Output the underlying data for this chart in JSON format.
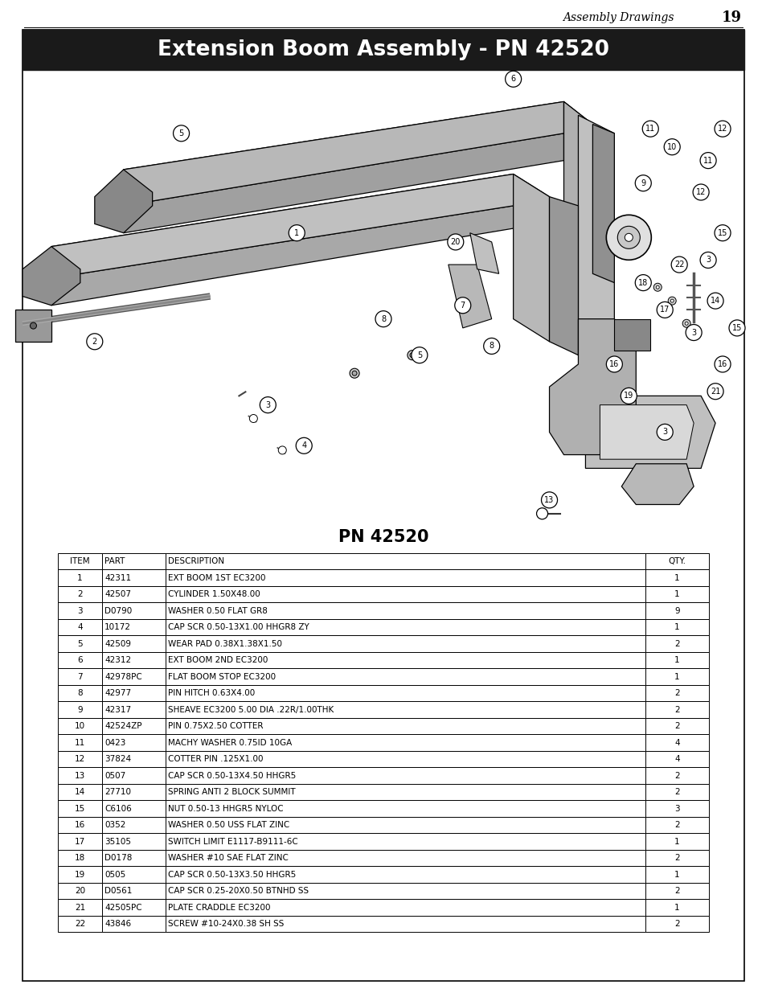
{
  "page_title": "Assembly Drawings",
  "page_number": "19",
  "header_title": "Extension Boom Assembly - PN 42520",
  "pn_label": "PN 42520",
  "table_headers": [
    "ITEM",
    "PART",
    "DESCRIPTION",
    "QTY."
  ],
  "table_data": [
    [
      "1",
      "42311",
      "EXT BOOM 1ST EC3200",
      "1"
    ],
    [
      "2",
      "42507",
      "CYLINDER 1.50X48.00",
      "1"
    ],
    [
      "3",
      "D0790",
      "WASHER 0.50 FLAT GR8",
      "9"
    ],
    [
      "4",
      "10172",
      "CAP SCR 0.50-13X1.00 HHGR8 ZY",
      "1"
    ],
    [
      "5",
      "42509",
      "WEAR PAD 0.38X1.38X1.50",
      "2"
    ],
    [
      "6",
      "42312",
      "EXT BOOM 2ND EC3200",
      "1"
    ],
    [
      "7",
      "42978PC",
      "FLAT BOOM STOP EC3200",
      "1"
    ],
    [
      "8",
      "42977",
      "PIN HITCH 0.63X4.00",
      "2"
    ],
    [
      "9",
      "42317",
      "SHEAVE EC3200 5.00 DIA .22R/1.00THK",
      "2"
    ],
    [
      "10",
      "42524ZP",
      "PIN 0.75X2.50 COTTER",
      "2"
    ],
    [
      "11",
      "0423",
      "MACHY WASHER 0.75ID 10GA",
      "4"
    ],
    [
      "12",
      "37824",
      "COTTER PIN .125X1.00",
      "4"
    ],
    [
      "13",
      "0507",
      "CAP SCR 0.50-13X4.50 HHGR5",
      "2"
    ],
    [
      "14",
      "27710",
      "SPRING ANTI 2 BLOCK SUMMIT",
      "2"
    ],
    [
      "15",
      "C6106",
      "NUT 0.50-13 HHGR5 NYLOC",
      "3"
    ],
    [
      "16",
      "0352",
      "WASHER 0.50 USS FLAT ZINC",
      "2"
    ],
    [
      "17",
      "35105",
      "SWITCH LIMIT E1117-B9111-6C",
      "1"
    ],
    [
      "18",
      "D0178",
      "WASHER #10 SAE FLAT ZINC",
      "2"
    ],
    [
      "19",
      "0505",
      "CAP SCR 0.50-13X3.50 HHGR5",
      "1"
    ],
    [
      "20",
      "D0561",
      "CAP SCR 0.25-20X0.50 BTNHD SS",
      "2"
    ],
    [
      "21",
      "42505PC",
      "PLATE CRADDLE EC3200",
      "1"
    ],
    [
      "22",
      "43846",
      "SCREW #10-24X0.38 SH SS",
      "2"
    ]
  ],
  "header_bg": "#1a1a1a",
  "header_fg": "#ffffff",
  "outer_border_color": "#000000",
  "page_bg": "#ffffff"
}
